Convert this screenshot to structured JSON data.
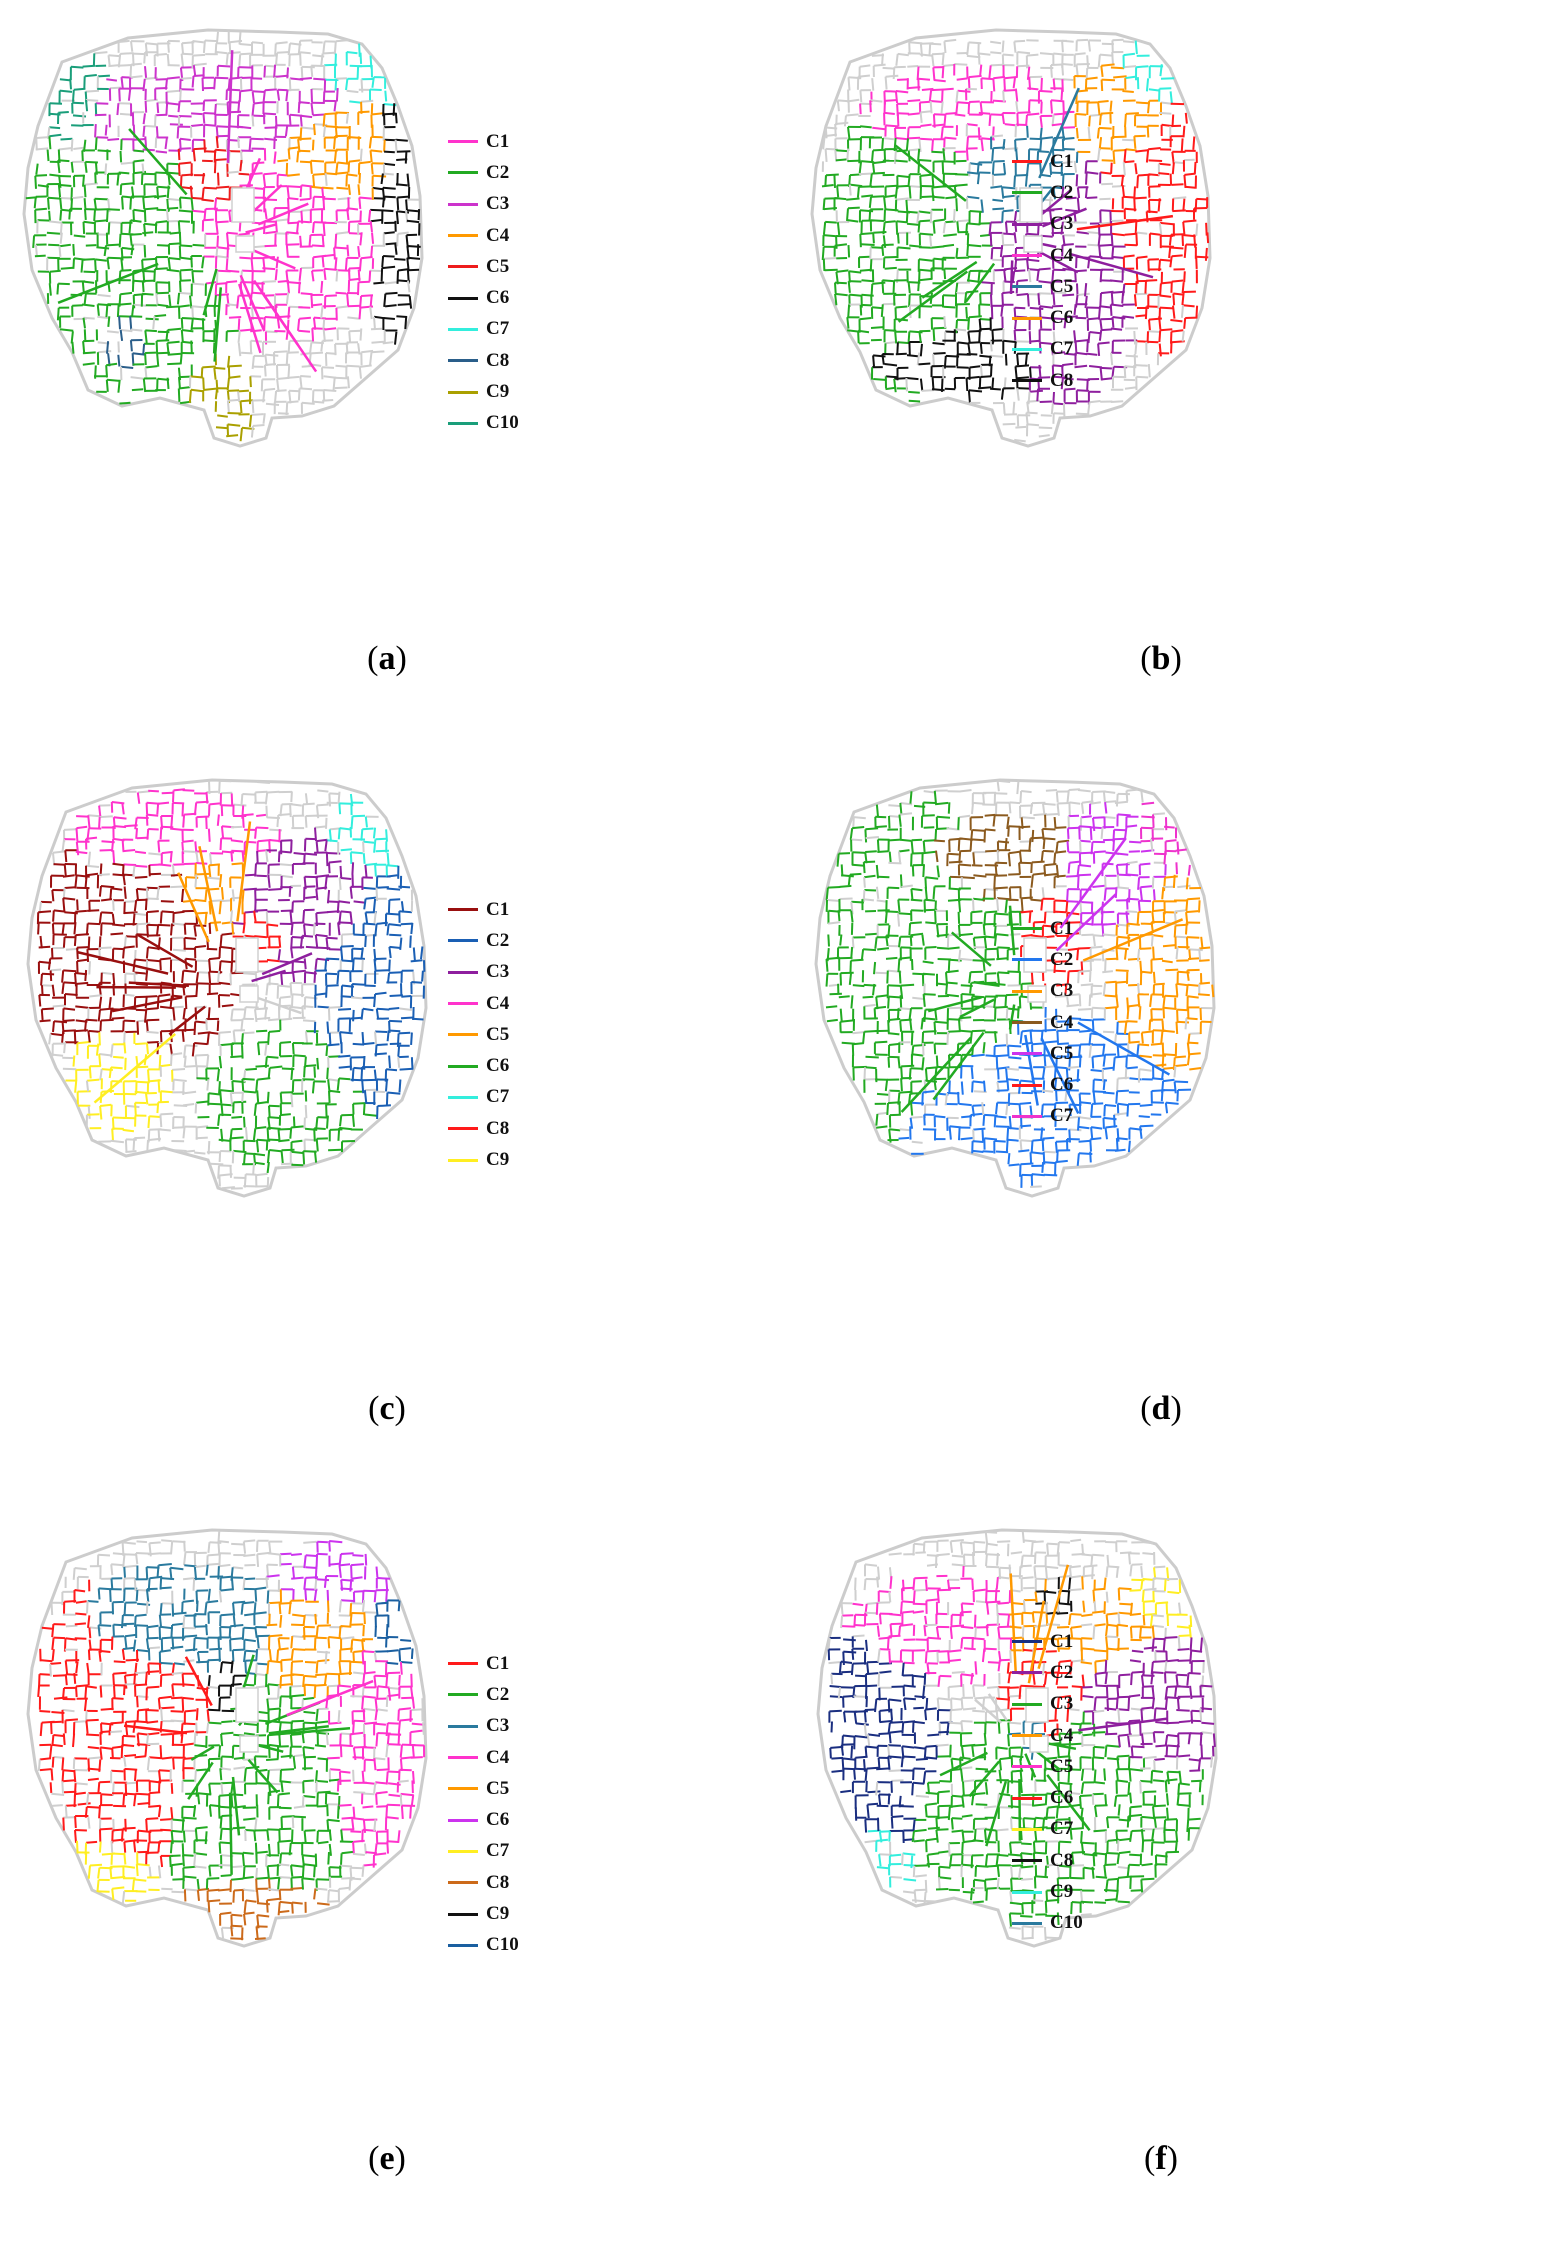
{
  "figure": {
    "panels": [
      {
        "caption": "a",
        "legend": [
          {
            "label": "C1",
            "color": "#ff33cc"
          },
          {
            "label": "C2",
            "color": "#22aa22"
          },
          {
            "label": "C3",
            "color": "#cc33cc"
          },
          {
            "label": "C4",
            "color": "#ff9900"
          },
          {
            "label": "C5",
            "color": "#ee1c1c"
          },
          {
            "label": "C6",
            "color": "#111111"
          },
          {
            "label": "C7",
            "color": "#33eedd"
          },
          {
            "label": "C8",
            "color": "#2a5e8a"
          },
          {
            "label": "C9",
            "color": "#aaa000"
          },
          {
            "label": "C10",
            "color": "#1a9e7a"
          }
        ]
      },
      {
        "caption": "b",
        "legend": [
          {
            "label": "C1",
            "color": "#ff1a1a"
          },
          {
            "label": "C2",
            "color": "#22aa22"
          },
          {
            "label": "C3",
            "color": "#8e1f9e"
          },
          {
            "label": "C4",
            "color": "#ff33cc"
          },
          {
            "label": "C5",
            "color": "#2a7a9e"
          },
          {
            "label": "C6",
            "color": "#ff9900"
          },
          {
            "label": "C7",
            "color": "#33eedd"
          },
          {
            "label": "C8",
            "color": "#111111"
          }
        ]
      },
      {
        "caption": "c",
        "legend": [
          {
            "label": "C1",
            "color": "#990f0f"
          },
          {
            "label": "C2",
            "color": "#1a5fb4"
          },
          {
            "label": "C3",
            "color": "#8e1f9e"
          },
          {
            "label": "C4",
            "color": "#ff33cc"
          },
          {
            "label": "C5",
            "color": "#ff9900"
          },
          {
            "label": "C6",
            "color": "#22aa22"
          },
          {
            "label": "C7",
            "color": "#33eedd"
          },
          {
            "label": "C8",
            "color": "#ff1a1a"
          },
          {
            "label": "C9",
            "color": "#ffee22"
          }
        ]
      },
      {
        "caption": "d",
        "legend": [
          {
            "label": "C1",
            "color": "#22aa22"
          },
          {
            "label": "C2",
            "color": "#2277ee"
          },
          {
            "label": "C3",
            "color": "#ff9900"
          },
          {
            "label": "C4",
            "color": "#8b5a1e"
          },
          {
            "label": "C5",
            "color": "#cc33ee"
          },
          {
            "label": "C6",
            "color": "#ff1a1a"
          },
          {
            "label": "C7",
            "color": "#ee33cc"
          }
        ]
      },
      {
        "caption": "e",
        "legend": [
          {
            "label": "C1",
            "color": "#ff1a1a"
          },
          {
            "label": "C2",
            "color": "#22aa22"
          },
          {
            "label": "C3",
            "color": "#2a7a9e"
          },
          {
            "label": "C4",
            "color": "#ff33cc"
          },
          {
            "label": "C5",
            "color": "#ff9900"
          },
          {
            "label": "C6",
            "color": "#cc33ee"
          },
          {
            "label": "C7",
            "color": "#ffee22"
          },
          {
            "label": "C8",
            "color": "#cc6a1a"
          },
          {
            "label": "C9",
            "color": "#111111"
          },
          {
            "label": "C10",
            "color": "#1a5fa0"
          }
        ]
      },
      {
        "caption": "f",
        "legend": [
          {
            "label": "C1",
            "color": "#1a2e80"
          },
          {
            "label": "C2",
            "color": "#8e1f9e"
          },
          {
            "label": "C3",
            "color": "#22aa22"
          },
          {
            "label": "C4",
            "color": "#ff9900"
          },
          {
            "label": "C5",
            "color": "#ff33cc"
          },
          {
            "label": "C6",
            "color": "#ff1a1a"
          },
          {
            "label": "C7",
            "color": "#ffee22"
          },
          {
            "label": "C8",
            "color": "#111111"
          },
          {
            "label": "C9",
            "color": "#33eedd"
          },
          {
            "label": "C10",
            "color": "#2a7a9e"
          }
        ]
      }
    ]
  }
}
